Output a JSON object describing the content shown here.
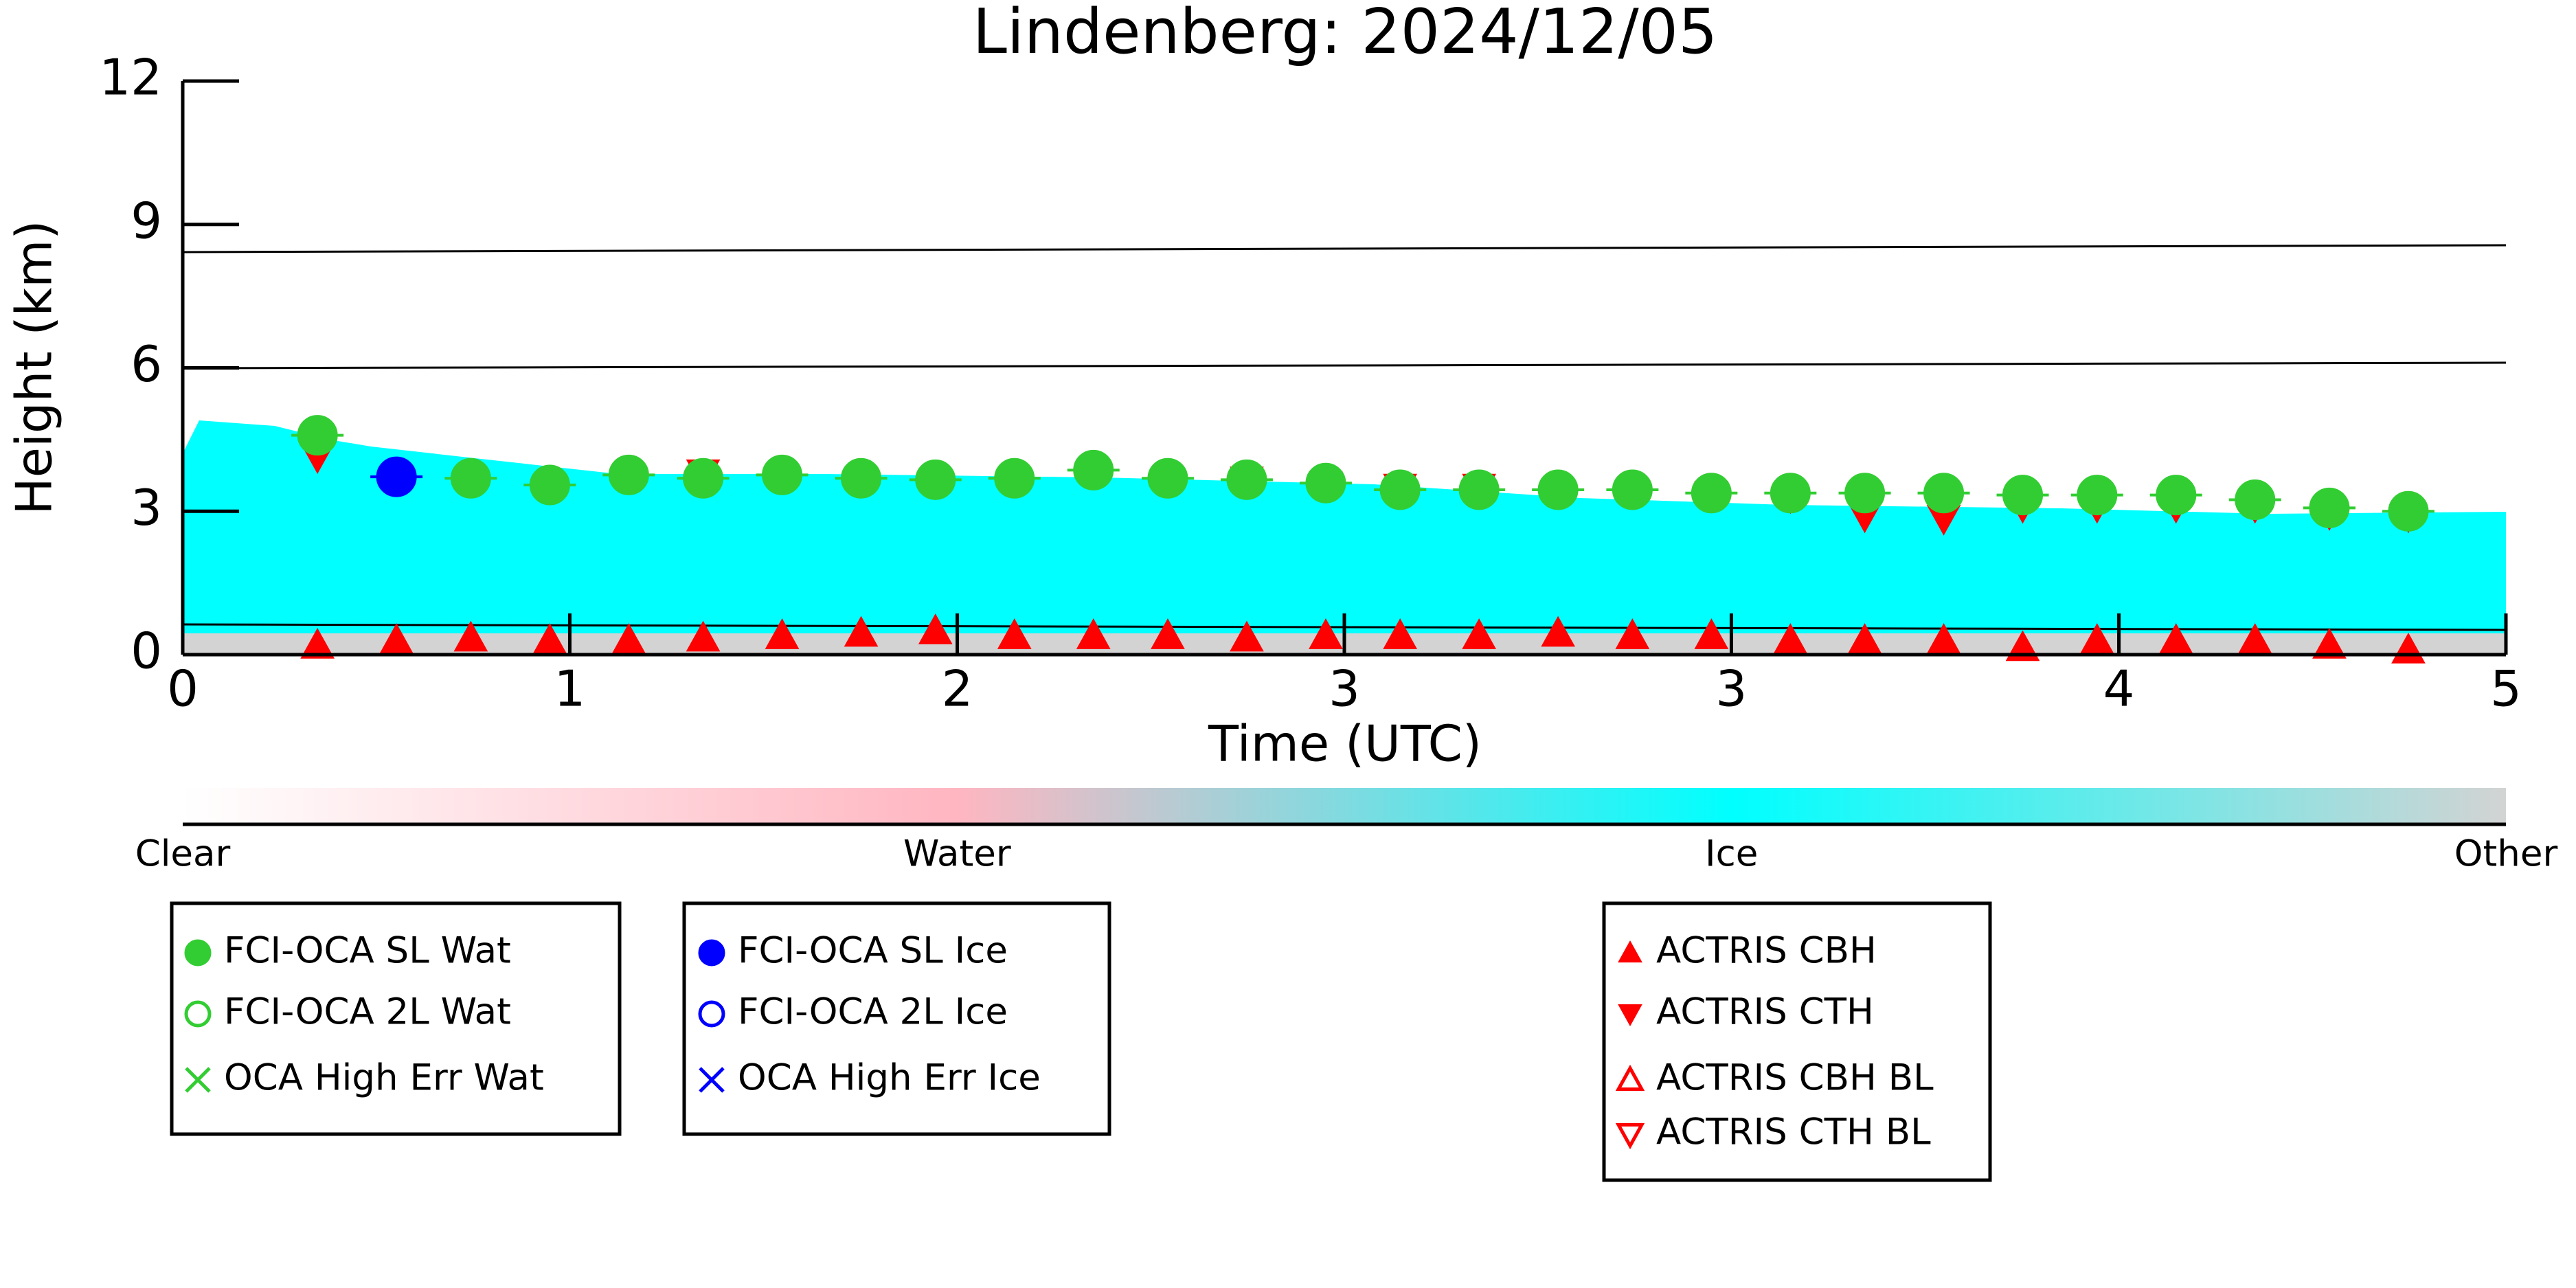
{
  "chart_data": {
    "type": "scatter",
    "title": "Lindenberg: 2024/12/05",
    "x_label": "Time (UTC)",
    "y_label": "Height (km)",
    "xlim": [
      0,
      5
    ],
    "ylim": [
      0,
      12
    ],
    "xticks": [
      0,
      {
        "value": 0.833,
        "label": "1"
      },
      {
        "value": 1.667,
        "label": "2"
      },
      {
        "value": 2.5,
        "label": "3"
      },
      {
        "value": 3.333,
        "label": "3"
      },
      {
        "value": 4.167,
        "label": "4"
      },
      5
    ],
    "yticks": [
      0,
      3,
      6,
      9,
      12
    ],
    "colorbar": {
      "labels": [
        "Clear",
        "Water",
        "Ice",
        "Other"
      ],
      "colors": [
        "#ffffff",
        "#ffb6c1",
        "#00ffff",
        "#d3d3d3"
      ]
    },
    "series": [
      {
        "name": "FCI-OCA SL Wat",
        "color": "#32cd32",
        "marker": "circle",
        "x": [
          0.29,
          0.62,
          0.79,
          0.96,
          1.12,
          1.29,
          1.46,
          1.62,
          1.79,
          1.96,
          2.12,
          2.29,
          2.46,
          2.62,
          2.79,
          2.96,
          3.12,
          3.29,
          3.46,
          3.62,
          3.79,
          3.96,
          4.12,
          4.29,
          4.46,
          4.62,
          4.79
        ],
        "values": [
          4.59,
          3.69,
          3.55,
          3.76,
          3.69,
          3.76,
          3.69,
          3.66,
          3.69,
          3.86,
          3.69,
          3.66,
          3.59,
          3.45,
          3.45,
          3.45,
          3.45,
          3.38,
          3.38,
          3.38,
          3.38,
          3.34,
          3.34,
          3.34,
          3.24,
          3.07,
          3.0
        ]
      },
      {
        "name": "FCI-OCA 2L Wat",
        "color": "#32cd32",
        "marker": "circle-open",
        "x": [],
        "values": []
      },
      {
        "name": "OCA High Err Wat",
        "color": "#32cd32",
        "marker": "x",
        "x": [],
        "values": []
      },
      {
        "name": "FCI-OCA SL Ice",
        "color": "#0000ff",
        "marker": "circle",
        "x": [
          0.46
        ],
        "values": [
          3.72
        ]
      },
      {
        "name": "FCI-OCA 2L Ice",
        "color": "#0000ff",
        "marker": "circle-open",
        "x": [],
        "values": []
      },
      {
        "name": "OCA High Err Ice",
        "color": "#0000ff",
        "marker": "x",
        "x": [],
        "values": []
      },
      {
        "name": "ACTRIS CBH",
        "color": "#ff0000",
        "marker": "tri-up",
        "x": [
          0.29,
          0.46,
          0.62,
          0.79,
          0.96,
          1.12,
          1.29,
          1.46,
          1.62,
          1.79,
          1.96,
          2.12,
          2.29,
          2.46,
          2.62,
          2.79,
          2.96,
          3.12,
          3.29,
          3.46,
          3.62,
          3.79,
          3.96,
          4.12,
          4.29,
          4.46,
          4.62,
          4.79
        ],
        "values": [
          0.2,
          0.3,
          0.35,
          0.3,
          0.3,
          0.35,
          0.4,
          0.45,
          0.5,
          0.4,
          0.4,
          0.4,
          0.35,
          0.4,
          0.4,
          0.4,
          0.45,
          0.4,
          0.4,
          0.3,
          0.3,
          0.3,
          0.15,
          0.3,
          0.3,
          0.3,
          0.2,
          0.1
        ]
      },
      {
        "name": "ACTRIS CTH",
        "color": "#ff0000",
        "marker": "tri-down",
        "x": [
          0.29,
          0.96,
          1.12,
          2.29,
          2.46,
          2.62,
          2.79,
          2.96,
          3.12,
          3.29,
          3.46,
          3.62,
          3.79,
          3.96,
          4.12,
          4.29,
          4.46,
          4.62,
          4.79
        ],
        "values": [
          4.14,
          3.7,
          3.8,
          3.65,
          3.55,
          3.5,
          3.5,
          3.4,
          3.4,
          3.35,
          3.3,
          2.9,
          2.85,
          3.1,
          3.1,
          3.1,
          3.1,
          2.95,
          2.9
        ]
      },
      {
        "name": "ACTRIS CBH BL",
        "color": "#ff0000",
        "marker": "tri-up-open",
        "x": [],
        "values": []
      },
      {
        "name": "ACTRIS CTH BL",
        "color": "#ff0000",
        "marker": "tri-down-open",
        "x": [],
        "values": []
      }
    ]
  }
}
